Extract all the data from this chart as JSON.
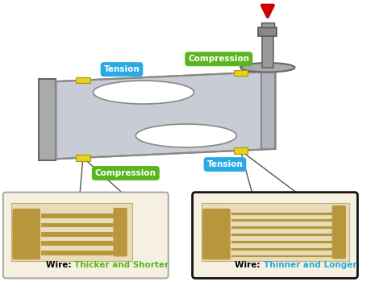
{
  "bg_color": "#ffffff",
  "load_cell_color": "#c8ccd4",
  "load_cell_edge": "#888888",
  "load_cell_shadow": "#aaaaaa",
  "wall_color": "#aaaaaa",
  "wall_edge": "#666666",
  "strain_gauge_bg": "#e8ddb8",
  "strain_gauge_wire": "#b8963c",
  "tension_label_bg": "#29aae2",
  "compression_label_bg": "#5bb520",
  "label_text_color": "#ffffff",
  "arrow_color": "#cc0000",
  "yellow_marker": "#e8d020",
  "box1_bg": "#f5f0e0",
  "box1_edge": "#aaaaaa",
  "box2_bg": "#f5f0e0",
  "box2_edge": "#111111",
  "wire1_color": "#5bb520",
  "wire2_color": "#29aae2",
  "fixture_color": "#aaaaaa",
  "fixture_edge": "#666666",
  "tension_text": "Tension",
  "compression_text": "Compression",
  "wire1_desc": "Thicker and Shorter",
  "wire2_desc": "Thinner and Longer"
}
